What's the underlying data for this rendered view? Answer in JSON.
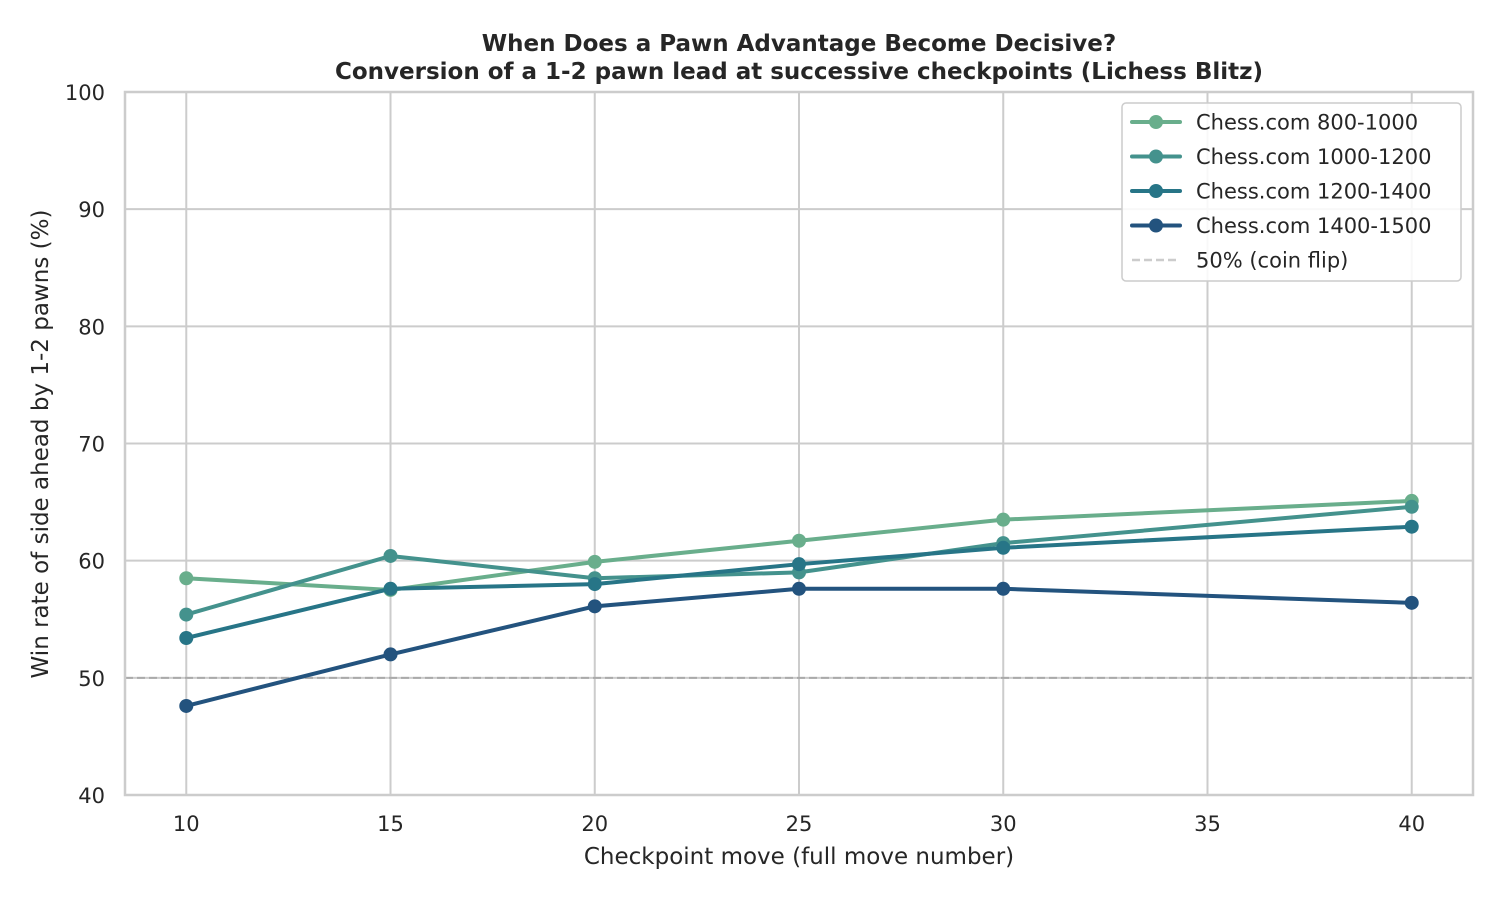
{
  "chart_data": {
    "type": "line",
    "title": "When Does a Pawn Advantage Become Decisive?",
    "subtitle": "Conversion of a 1-2 pawn lead at successive checkpoints (Lichess Blitz)",
    "xlabel": "Checkpoint move (full move number)",
    "ylabel": "Win rate of side ahead by 1-2 pawns (%)",
    "xlim": [
      8.5,
      41.5
    ],
    "ylim": [
      40,
      100
    ],
    "xticks": [
      10,
      15,
      20,
      25,
      30,
      35,
      40
    ],
    "yticks": [
      40,
      50,
      60,
      70,
      80,
      90,
      100
    ],
    "grid": true,
    "legend_position": "top-right",
    "x": [
      10,
      15,
      20,
      25,
      30,
      40
    ],
    "series": [
      {
        "name": "Chess.com 800-1000",
        "color": "#69ae8c",
        "values": [
          58.5,
          57.5,
          59.9,
          61.7,
          63.5,
          65.1
        ]
      },
      {
        "name": "Chess.com 1000-1200",
        "color": "#44928d",
        "values": [
          55.4,
          60.4,
          58.5,
          59.0,
          61.5,
          64.6
        ]
      },
      {
        "name": "Chess.com 1200-1400",
        "color": "#277587",
        "values": [
          53.4,
          57.6,
          58.0,
          59.7,
          61.1,
          62.9
        ]
      },
      {
        "name": "Chess.com 1400-1500",
        "color": "#23537e",
        "values": [
          47.6,
          52.0,
          56.1,
          57.6,
          57.6,
          56.4
        ]
      }
    ],
    "reference_line": {
      "name": "50% (coin flip)",
      "value": 50,
      "color": "#aaaaaa",
      "style": "dashed"
    }
  }
}
